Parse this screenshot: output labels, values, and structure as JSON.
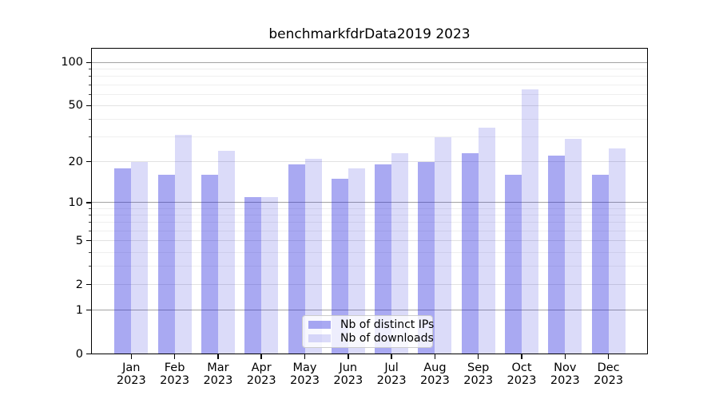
{
  "chart_data": {
    "type": "bar",
    "title": "benchmarkfdrData2019 2023",
    "yscale": "log1p",
    "categories": [
      "Jan",
      "Feb",
      "Mar",
      "Apr",
      "May",
      "Jun",
      "Jul",
      "Aug",
      "Sep",
      "Oct",
      "Nov",
      "Dec"
    ],
    "x_year_label": "2023",
    "series": [
      {
        "name": "Nb of distinct IPs",
        "color": "rgba(30,30,220,0.38)",
        "color_hex": "#a9a9f1",
        "values": [
          18,
          16,
          16,
          11,
          19,
          15,
          19,
          20,
          23,
          16,
          22,
          16
        ]
      },
      {
        "name": "Nb of downloads",
        "color": "rgba(30,30,220,0.16)",
        "color_hex": "#dcdcf9",
        "values": [
          20,
          31,
          24,
          11,
          21,
          18,
          23,
          30,
          35,
          65,
          29,
          25
        ]
      }
    ],
    "y_major_ticks": [
      0,
      1,
      2,
      5,
      10,
      20,
      50,
      100
    ],
    "y_minor_ticks": [
      3,
      4,
      6,
      7,
      8,
      9,
      30,
      40,
      60,
      70,
      80,
      90
    ],
    "emphasized_gridlines": [
      1,
      10,
      100
    ],
    "ylim": [
      0,
      110
    ],
    "grid": true,
    "legend_position": "lower center"
  }
}
